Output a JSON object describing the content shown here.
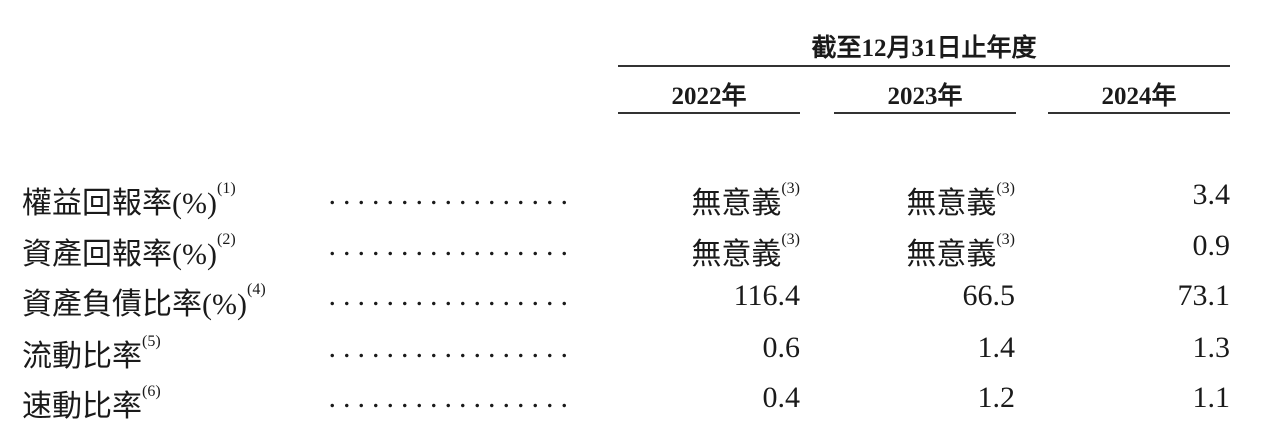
{
  "header": {
    "period": "截至12月31日止年度",
    "years": [
      "2022年",
      "2023年",
      "2024年"
    ]
  },
  "rows": [
    {
      "label": "權益回報率(%)",
      "note": "(1)",
      "values": [
        {
          "v": "無意義",
          "n": "(3)"
        },
        {
          "v": "無意義",
          "n": "(3)"
        },
        {
          "v": "3.4",
          "n": ""
        }
      ]
    },
    {
      "label": "資產回報率(%)",
      "note": "(2)",
      "values": [
        {
          "v": "無意義",
          "n": "(3)"
        },
        {
          "v": "無意義",
          "n": "(3)"
        },
        {
          "v": "0.9",
          "n": ""
        }
      ]
    },
    {
      "label": "資產負債比率(%)",
      "note": "(4)",
      "values": [
        {
          "v": "116.4",
          "n": ""
        },
        {
          "v": "66.5",
          "n": ""
        },
        {
          "v": "73.1",
          "n": ""
        }
      ]
    },
    {
      "label": "流動比率",
      "note": "(5)",
      "values": [
        {
          "v": "0.6",
          "n": ""
        },
        {
          "v": "1.4",
          "n": ""
        },
        {
          "v": "1.3",
          "n": ""
        }
      ]
    },
    {
      "label": "速動比率",
      "note": "(6)",
      "values": [
        {
          "v": "0.4",
          "n": ""
        },
        {
          "v": "1.2",
          "n": ""
        },
        {
          "v": "1.1",
          "n": ""
        }
      ]
    }
  ],
  "leader": "................."
}
